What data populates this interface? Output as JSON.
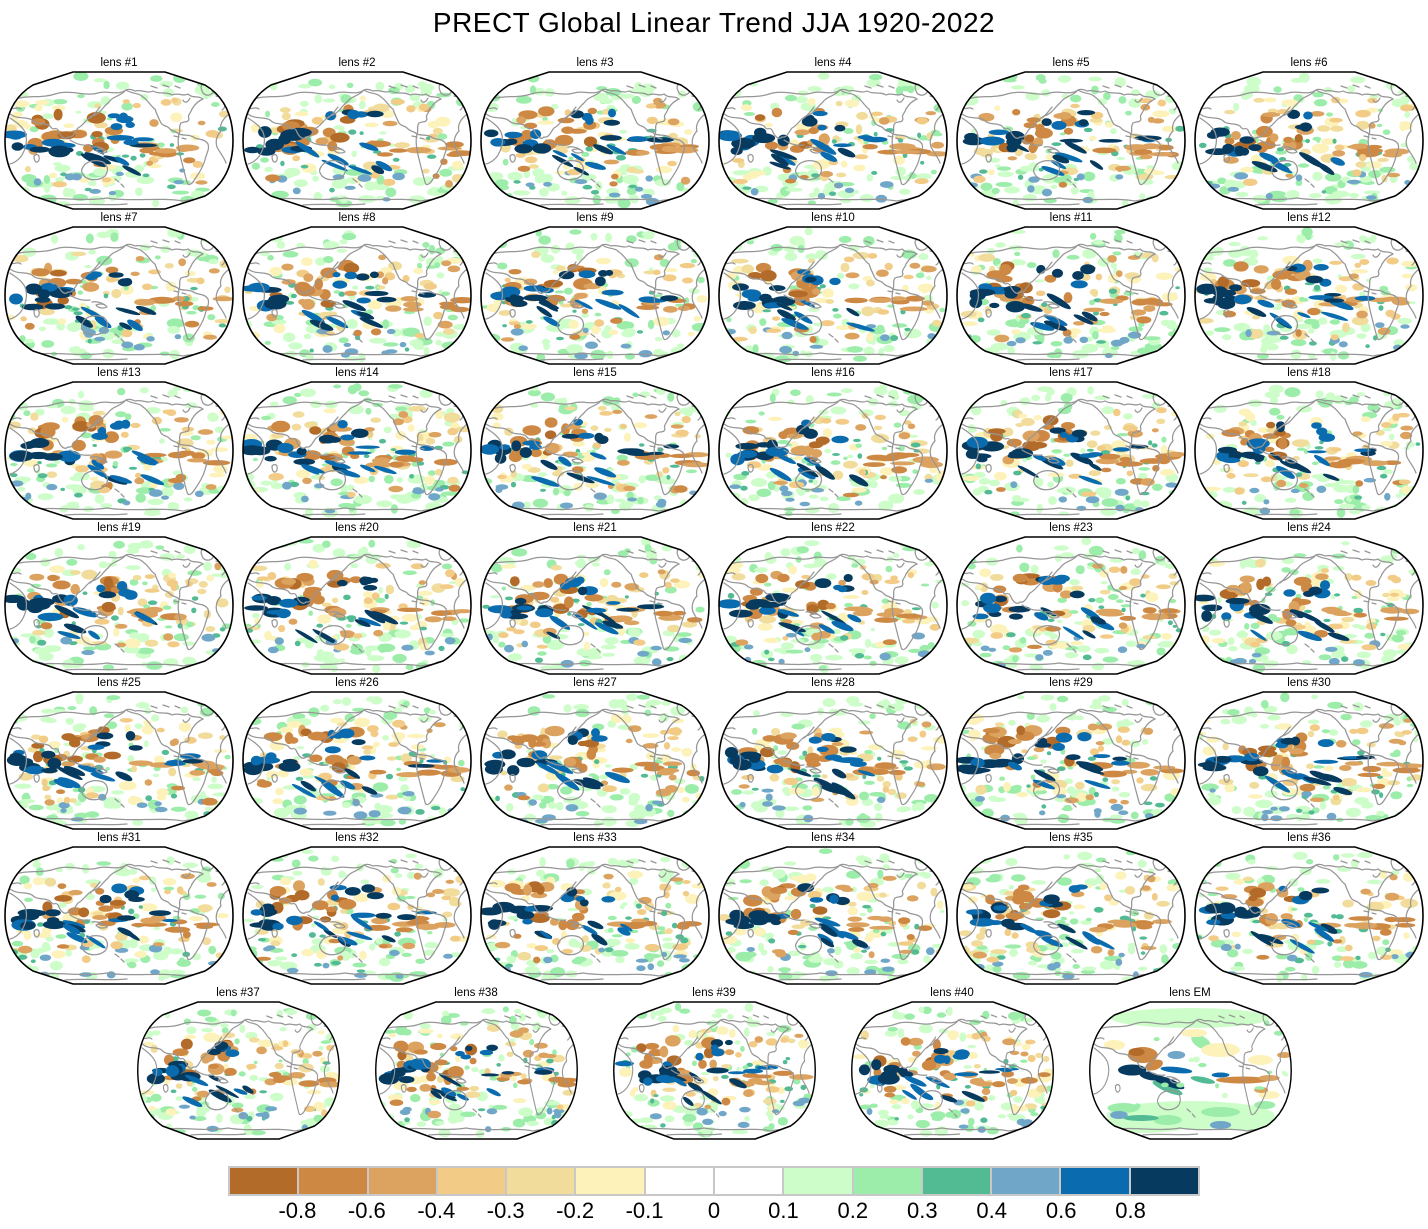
{
  "title": "PRECT Global Linear Trend JJA 1920-2022",
  "panels": [
    {
      "label": "lens #1"
    },
    {
      "label": "lens #2"
    },
    {
      "label": "lens #3"
    },
    {
      "label": "lens #4"
    },
    {
      "label": "lens #5"
    },
    {
      "label": "lens #6"
    },
    {
      "label": "lens #7"
    },
    {
      "label": "lens #8"
    },
    {
      "label": "lens #9"
    },
    {
      "label": "lens #10"
    },
    {
      "label": "lens #11"
    },
    {
      "label": "lens #12"
    },
    {
      "label": "lens #13"
    },
    {
      "label": "lens #14"
    },
    {
      "label": "lens #15"
    },
    {
      "label": "lens #16"
    },
    {
      "label": "lens #17"
    },
    {
      "label": "lens #18"
    },
    {
      "label": "lens #19"
    },
    {
      "label": "lens #20"
    },
    {
      "label": "lens #21"
    },
    {
      "label": "lens #22"
    },
    {
      "label": "lens #23"
    },
    {
      "label": "lens #24"
    },
    {
      "label": "lens #25"
    },
    {
      "label": "lens #26"
    },
    {
      "label": "lens #27"
    },
    {
      "label": "lens #28"
    },
    {
      "label": "lens #29"
    },
    {
      "label": "lens #30"
    },
    {
      "label": "lens #31"
    },
    {
      "label": "lens #32"
    },
    {
      "label": "lens #33"
    },
    {
      "label": "lens #34"
    },
    {
      "label": "lens #35"
    },
    {
      "label": "lens #36"
    },
    {
      "label": "lens #37"
    },
    {
      "label": "lens #38"
    },
    {
      "label": "lens #39"
    },
    {
      "label": "lens #40"
    },
    {
      "label": "lens EM",
      "ensemble_mean": true
    }
  ],
  "colorbar": {
    "tick_labels": [
      "-0.8",
      "-0.6",
      "-0.4",
      "-0.3",
      "-0.2",
      "-0.1",
      "0",
      "0.1",
      "0.2",
      "0.3",
      "0.4",
      "0.6",
      "0.8"
    ],
    "colors": [
      "#b26b28",
      "#cd8844",
      "#dba35f",
      "#f2cc86",
      "#f1dc9b",
      "#fcf2ba",
      "#ffffff",
      "#ffffff",
      "#cdfdc9",
      "#9cedaa",
      "#53bb94",
      "#70a7c9",
      "#0a6cae",
      "#063a5f"
    ],
    "frame_color": "#c8c8c8"
  },
  "map_style": {
    "coastline_color": "#969696",
    "outline_color": "#000000",
    "background": "#ffffff"
  },
  "chart_data": {
    "type": "heatmap",
    "subtype": "global-map-ensemble",
    "title": "PRECT Global Linear Trend JJA 1920-2022",
    "panels": [
      "lens #1",
      "lens #2",
      "lens #3",
      "lens #4",
      "lens #5",
      "lens #6",
      "lens #7",
      "lens #8",
      "lens #9",
      "lens #10",
      "lens #11",
      "lens #12",
      "lens #13",
      "lens #14",
      "lens #15",
      "lens #16",
      "lens #17",
      "lens #18",
      "lens #19",
      "lens #20",
      "lens #21",
      "lens #22",
      "lens #23",
      "lens #24",
      "lens #25",
      "lens #26",
      "lens #27",
      "lens #28",
      "lens #29",
      "lens #30",
      "lens #31",
      "lens #32",
      "lens #33",
      "lens #34",
      "lens #35",
      "lens #36",
      "lens #37",
      "lens #38",
      "lens #39",
      "lens #40",
      "lens EM"
    ],
    "grid": {
      "rows": [
        6,
        6,
        6,
        6,
        6,
        6,
        5
      ]
    },
    "colorbar_ticks": [
      -0.8,
      -0.6,
      -0.4,
      -0.3,
      -0.2,
      -0.1,
      0,
      0.1,
      0.2,
      0.3,
      0.4,
      0.6,
      0.8
    ],
    "palette": [
      "#b26b28",
      "#cd8844",
      "#dba35f",
      "#f2cc86",
      "#f1dc9b",
      "#fcf2ba",
      "#ffffff",
      "#ffffff",
      "#cdfdc9",
      "#9cedaa",
      "#53bb94",
      "#70a7c9",
      "#0a6cae",
      "#063a5f"
    ],
    "projection": "robinson-like oval",
    "legend_position": "bottom"
  }
}
